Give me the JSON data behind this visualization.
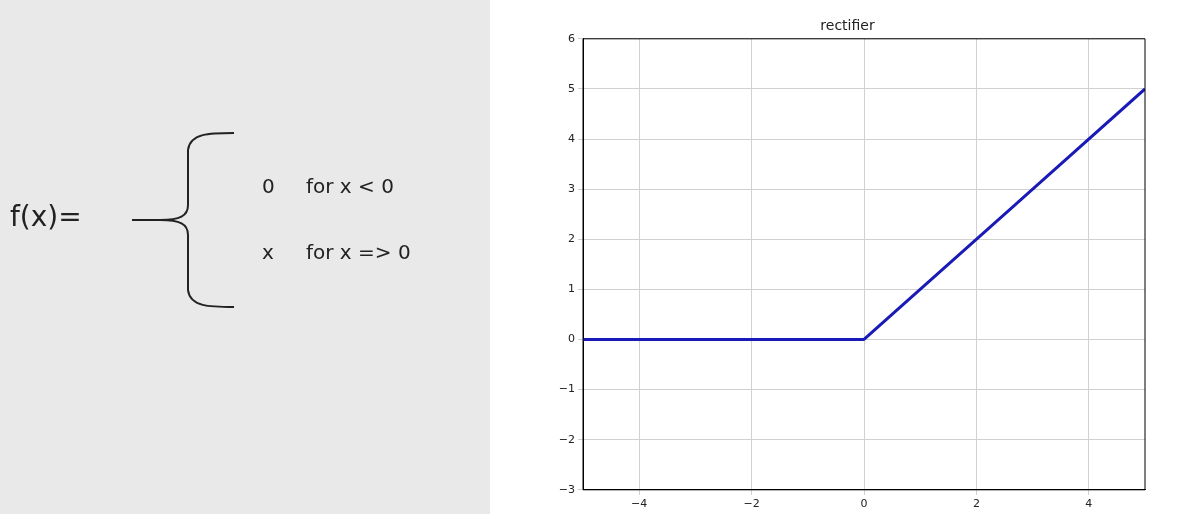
{
  "chart_data": [
    {
      "type": "other",
      "title": "f(x)=",
      "annotations": [
        "0",
        "for x < 0",
        "x",
        "for x => 0"
      ]
    },
    {
      "type": "line",
      "title": "rectifier",
      "x": [
        -5,
        0,
        5
      ],
      "series": [
        {
          "color": "#1a1ab8",
          "values": [
            0,
            0,
            5
          ]
        }
      ],
      "xlim": [
        -5,
        5
      ],
      "xticks": [
        {
          "value": -4,
          "label": "−4"
        },
        {
          "value": -2,
          "label": "−2"
        },
        0,
        2,
        4
      ],
      "ylim": [
        -3,
        6
      ],
      "yticks": [
        {
          "value": -3,
          "label": "−3"
        },
        {
          "value": -2,
          "label": "−2"
        },
        {
          "value": -1,
          "label": "−1"
        },
        0,
        1,
        2,
        3,
        4,
        5,
        6
      ],
      "grid": true,
      "legend": false,
      "marker": "none",
      "line_style": "solid"
    }
  ]
}
